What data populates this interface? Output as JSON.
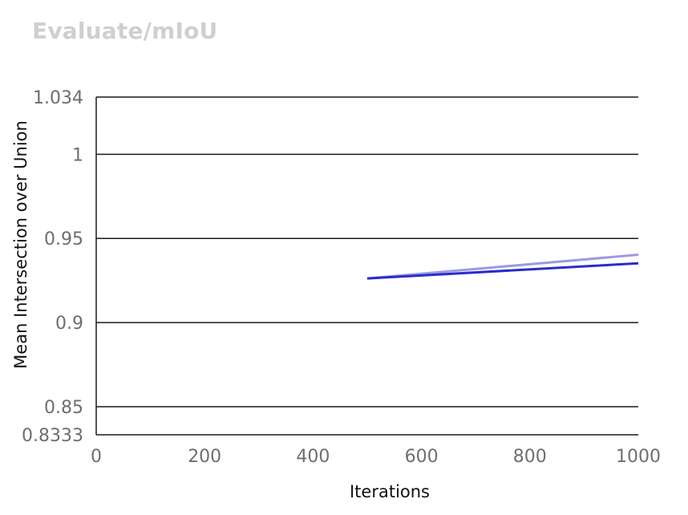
{
  "chart_data": {
    "type": "line",
    "title": "Evaluate/mIoU",
    "xlabel": "Iterations",
    "ylabel": "Mean Intersection over Union",
    "xlim": [
      0,
      1000
    ],
    "ylim": [
      0.8333,
      1.034
    ],
    "x_ticks": [
      0,
      200,
      400,
      600,
      800,
      1000
    ],
    "x_tick_labels": [
      "0",
      "200",
      "400",
      "600",
      "800",
      "1000"
    ],
    "y_ticks": [
      1.034,
      1,
      0.95,
      0.9,
      0.85,
      0.8333
    ],
    "y_tick_labels": [
      "1.034",
      "1",
      "0.95",
      "0.9",
      "0.85",
      "0.8333"
    ],
    "y_gridlines": [
      1.034,
      1,
      0.95,
      0.9,
      0.85
    ],
    "grid": true,
    "series": [
      {
        "color": "#9a9ae6",
        "x": [
          500,
          1000
        ],
        "y": [
          0.9262,
          0.9403
        ]
      },
      {
        "color": "#2b2bcc",
        "x": [
          500,
          1000
        ],
        "y": [
          0.9262,
          0.9352
        ]
      }
    ]
  }
}
